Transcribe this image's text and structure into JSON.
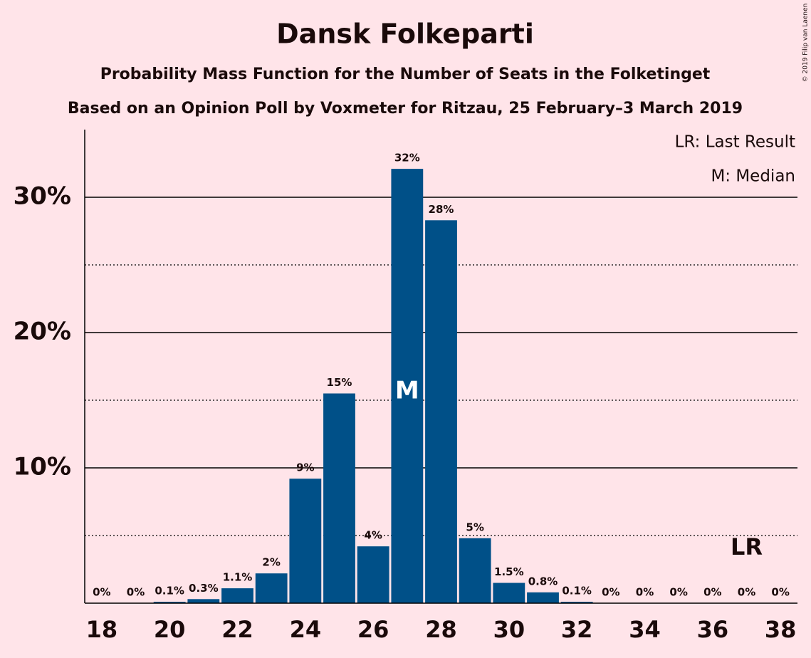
{
  "chart_data": {
    "type": "bar",
    "title": "Dansk Folkeparti",
    "subtitle": "Probability Mass Function for the Number of Seats in the Folketinget",
    "subtitle2": "Based on an Opinion Poll by Voxmeter for Ritzau, 25 February–3 March 2019",
    "copyright": "© 2019 Filip van Laenen",
    "legend": [
      "LR: Last Result",
      "M: Median"
    ],
    "x": [
      18,
      19,
      20,
      21,
      22,
      23,
      24,
      25,
      26,
      27,
      28,
      29,
      30,
      31,
      32,
      33,
      34,
      35,
      36,
      37,
      38
    ],
    "values": [
      0,
      0,
      0.1,
      0.3,
      1.1,
      2.2,
      9.2,
      15.5,
      4.2,
      32.1,
      28.3,
      4.8,
      1.5,
      0.8,
      0.1,
      0,
      0,
      0,
      0,
      0,
      0
    ],
    "value_labels": [
      "0%",
      "0%",
      "0.1%",
      "0.3%",
      "1.1%",
      "2%",
      "9%",
      "15%",
      "4%",
      "32%",
      "28%",
      "5%",
      "1.5%",
      "0.8%",
      "0.1%",
      "0%",
      "0%",
      "0%",
      "0%",
      "0%",
      "0%"
    ],
    "color": "#005088",
    "median": {
      "x": 27,
      "label": "M"
    },
    "last_result": {
      "x": 37,
      "label": "LR"
    },
    "xlim": [
      17.5,
      38.5
    ],
    "xticks": [
      18,
      20,
      22,
      24,
      26,
      28,
      30,
      32,
      34,
      36,
      38
    ],
    "ylim": [
      0,
      35
    ],
    "yticks": [
      {
        "value": 10,
        "label": "10%"
      },
      {
        "value": 20,
        "label": "20%"
      },
      {
        "value": 30,
        "label": "30%"
      }
    ],
    "minor_yticks": [
      5,
      15,
      25
    ],
    "grid": true
  }
}
